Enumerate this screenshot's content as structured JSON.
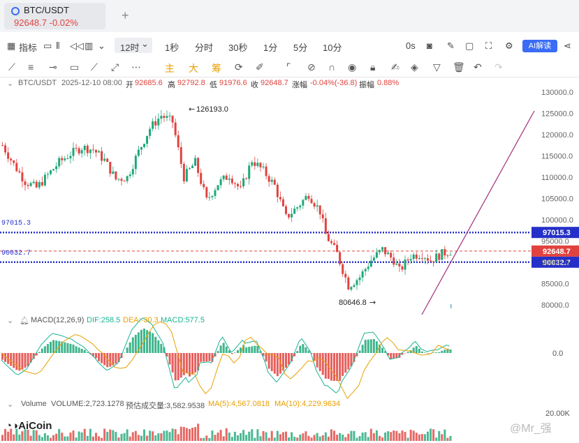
{
  "tab": {
    "symbol": "BTC/USDT",
    "price": "92648.7",
    "change": "-0.02%",
    "plus": "+"
  },
  "toolbar": {
    "indicator": "指标",
    "interval_selected": "12时",
    "intervals": [
      "1秒",
      "分时",
      "30秒",
      "1分",
      "5分",
      "10分"
    ],
    "countdown": "0s",
    "ai_button": "AI解读"
  },
  "drawing_tools": {
    "labels": [
      "主",
      "大",
      "筹"
    ]
  },
  "info_line": {
    "symbol": "BTC/USDT",
    "time": "2025-12-10 08:00",
    "open_label": "开",
    "open": "92685.6",
    "high_label": "高",
    "high": "92792.8",
    "low_label": "低",
    "low": "91976.6",
    "close_label": "收",
    "close": "92648.7",
    "change_label": "涨幅",
    "change": "-0.04%(-36.8)",
    "amp_label": "振幅",
    "amp": "0.88%"
  },
  "macd_line": {
    "name": "MACD(12,26,9)",
    "dif": "DIF:258.5",
    "dea": "DEA:-30.3",
    "macd": "MACD:577.5"
  },
  "volume_line": {
    "name": "Volume",
    "volume": "VOLUME:2,723.1278",
    "est": "预估成交量:3,582.9538",
    "ma5": "MA(5):4,567.0818",
    "ma10": "MA(10):4,229.9634"
  },
  "branding": {
    "logo": "AiCoin",
    "watermark": "@Mr_强"
  },
  "chart_data": {
    "type": "candlestick",
    "y_ticks": [
      "130000.0",
      "125000.0",
      "120000.0",
      "115000.0",
      "110000.0",
      "105000.0",
      "100000.0",
      "95000.0",
      "90000.0",
      "85000.0",
      "80000.0"
    ],
    "annotations": {
      "high": "126193.0",
      "low": "80646.8"
    },
    "levels": [
      {
        "label": "97015.3",
        "value": 97015.3,
        "style": "dotted-blue"
      },
      {
        "label": "90032.7",
        "value": 90032.7,
        "style": "dotted-blue"
      },
      {
        "label": "92648.7",
        "value": 92648.7,
        "style": "dashed-red"
      }
    ],
    "left_level_labels": [
      "97015.3",
      "90032.7"
    ],
    "price_path": [
      {
        "t": 0,
        "p": 117500
      },
      {
        "t": 4,
        "p": 113000
      },
      {
        "t": 8,
        "p": 109000
      },
      {
        "t": 12,
        "p": 107500
      },
      {
        "t": 16,
        "p": 110500
      },
      {
        "t": 20,
        "p": 113500
      },
      {
        "t": 24,
        "p": 115500
      },
      {
        "t": 28,
        "p": 117000
      },
      {
        "t": 32,
        "p": 116500
      },
      {
        "t": 36,
        "p": 114000
      },
      {
        "t": 40,
        "p": 109500
      },
      {
        "t": 44,
        "p": 110000
      },
      {
        "t": 48,
        "p": 116000
      },
      {
        "t": 52,
        "p": 121500
      },
      {
        "t": 56,
        "p": 124500
      },
      {
        "t": 60,
        "p": 123000
      },
      {
        "t": 64,
        "p": 110000
      },
      {
        "t": 68,
        "p": 113500
      },
      {
        "t": 72,
        "p": 104500
      },
      {
        "t": 76,
        "p": 108500
      },
      {
        "t": 80,
        "p": 110500
      },
      {
        "t": 84,
        "p": 107000
      },
      {
        "t": 88,
        "p": 114000
      },
      {
        "t": 92,
        "p": 111500
      },
      {
        "t": 96,
        "p": 108000
      },
      {
        "t": 100,
        "p": 100500
      },
      {
        "t": 104,
        "p": 103000
      },
      {
        "t": 108,
        "p": 106000
      },
      {
        "t": 112,
        "p": 102000
      },
      {
        "t": 114,
        "p": 96500
      },
      {
        "t": 118,
        "p": 92000
      },
      {
        "t": 122,
        "p": 84500
      },
      {
        "t": 126,
        "p": 86500
      },
      {
        "t": 130,
        "p": 90500
      },
      {
        "t": 134,
        "p": 93000
      },
      {
        "t": 138,
        "p": 90500
      },
      {
        "t": 140,
        "p": 88000
      },
      {
        "t": 144,
        "p": 91500
      },
      {
        "t": 148,
        "p": 92000
      },
      {
        "t": 151,
        "p": 90500
      },
      {
        "t": 155,
        "p": 92000
      },
      {
        "t": 158,
        "p": 92650
      }
    ]
  }
}
